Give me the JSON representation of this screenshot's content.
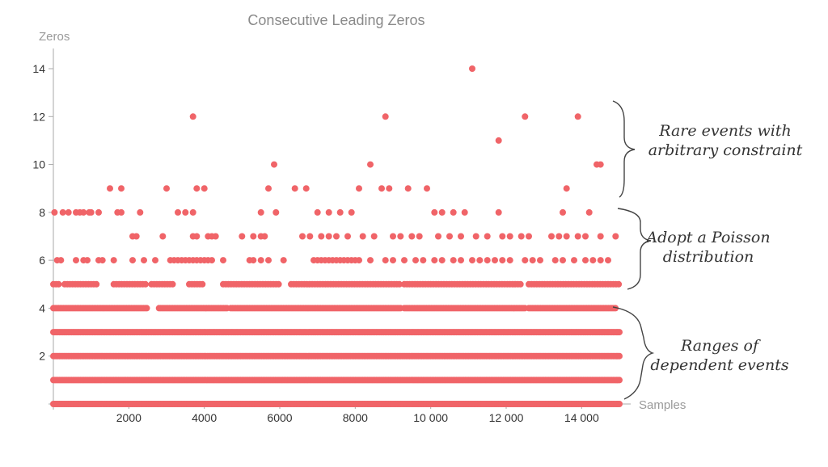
{
  "chart_data": {
    "type": "scatter",
    "title": "Consecutive Leading Zeros",
    "xlabel": "Samples",
    "ylabel": "Zeros",
    "xlim": [
      0,
      15000
    ],
    "ylim": [
      0,
      14.5
    ],
    "x_ticks": [
      "2000",
      "4000",
      "6000",
      "8000",
      "10 000",
      "12 000",
      "14 000"
    ],
    "y_ticks": [
      "2",
      "4",
      "6",
      "8",
      "10",
      "12",
      "14"
    ],
    "color": "#f06468",
    "dense_levels": [
      0,
      1,
      2,
      3
    ],
    "sparse_levels": [
      {
        "y": 4,
        "clusters": [
          [
            0,
            2500
          ],
          [
            2800,
            4600
          ],
          [
            4700,
            9200
          ],
          [
            9300,
            12500
          ],
          [
            12600,
            14900
          ]
        ]
      },
      {
        "y": 5,
        "clusters": [
          [
            0,
            150
          ],
          [
            300,
            1200
          ],
          [
            1600,
            2500
          ],
          [
            2600,
            3200
          ],
          [
            3600,
            4000
          ],
          [
            4500,
            6000
          ],
          [
            6300,
            9200
          ],
          [
            9300,
            12400
          ],
          [
            12600,
            15000
          ]
        ]
      }
    ],
    "points": [
      [
        30,
        8
      ],
      [
        250,
        8
      ],
      [
        400,
        8
      ],
      [
        600,
        8
      ],
      [
        700,
        8
      ],
      [
        800,
        8
      ],
      [
        950,
        8
      ],
      [
        1000,
        8
      ],
      [
        1200,
        8
      ],
      [
        1700,
        8
      ],
      [
        1800,
        8
      ],
      [
        2300,
        8
      ],
      [
        3300,
        8
      ],
      [
        3500,
        8
      ],
      [
        3700,
        8
      ],
      [
        5500,
        8
      ],
      [
        5900,
        8
      ],
      [
        7000,
        8
      ],
      [
        7300,
        8
      ],
      [
        7600,
        8
      ],
      [
        7900,
        8
      ],
      [
        10100,
        8
      ],
      [
        10300,
        8
      ],
      [
        10600,
        8
      ],
      [
        10900,
        8
      ],
      [
        11800,
        8
      ],
      [
        13500,
        8
      ],
      [
        14200,
        8
      ],
      [
        2100,
        7
      ],
      [
        2200,
        7
      ],
      [
        2900,
        7
      ],
      [
        3700,
        7
      ],
      [
        3800,
        7
      ],
      [
        4100,
        7
      ],
      [
        4200,
        7
      ],
      [
        4300,
        7
      ],
      [
        5000,
        7
      ],
      [
        5300,
        7
      ],
      [
        5500,
        7
      ],
      [
        5600,
        7
      ],
      [
        6600,
        7
      ],
      [
        6800,
        7
      ],
      [
        7100,
        7
      ],
      [
        7300,
        7
      ],
      [
        7500,
        7
      ],
      [
        7800,
        7
      ],
      [
        8200,
        7
      ],
      [
        8500,
        7
      ],
      [
        9000,
        7
      ],
      [
        9200,
        7
      ],
      [
        9500,
        7
      ],
      [
        9700,
        7
      ],
      [
        10200,
        7
      ],
      [
        10500,
        7
      ],
      [
        10800,
        7
      ],
      [
        11200,
        7
      ],
      [
        11500,
        7
      ],
      [
        11900,
        7
      ],
      [
        12100,
        7
      ],
      [
        12400,
        7
      ],
      [
        12600,
        7
      ],
      [
        13200,
        7
      ],
      [
        13400,
        7
      ],
      [
        13600,
        7
      ],
      [
        13900,
        7
      ],
      [
        14100,
        7
      ],
      [
        14500,
        7
      ],
      [
        14900,
        7
      ],
      [
        100,
        6
      ],
      [
        200,
        6
      ],
      [
        600,
        6
      ],
      [
        800,
        6
      ],
      [
        900,
        6
      ],
      [
        1200,
        6
      ],
      [
        1300,
        6
      ],
      [
        1600,
        6
      ],
      [
        2100,
        6
      ],
      [
        2400,
        6
      ],
      [
        2700,
        6
      ],
      [
        3100,
        6
      ],
      [
        3200,
        6
      ],
      [
        3300,
        6
      ],
      [
        3400,
        6
      ],
      [
        3500,
        6
      ],
      [
        3600,
        6
      ],
      [
        3700,
        6
      ],
      [
        3800,
        6
      ],
      [
        3900,
        6
      ],
      [
        4000,
        6
      ],
      [
        4100,
        6
      ],
      [
        4200,
        6
      ],
      [
        4500,
        6
      ],
      [
        5200,
        6
      ],
      [
        5300,
        6
      ],
      [
        5500,
        6
      ],
      [
        5700,
        6
      ],
      [
        6100,
        6
      ],
      [
        6900,
        6
      ],
      [
        7000,
        6
      ],
      [
        7100,
        6
      ],
      [
        7200,
        6
      ],
      [
        7300,
        6
      ],
      [
        7400,
        6
      ],
      [
        7500,
        6
      ],
      [
        7600,
        6
      ],
      [
        7700,
        6
      ],
      [
        7800,
        6
      ],
      [
        7900,
        6
      ],
      [
        8000,
        6
      ],
      [
        8100,
        6
      ],
      [
        8400,
        6
      ],
      [
        8800,
        6
      ],
      [
        9000,
        6
      ],
      [
        9300,
        6
      ],
      [
        9600,
        6
      ],
      [
        9800,
        6
      ],
      [
        10100,
        6
      ],
      [
        10300,
        6
      ],
      [
        10600,
        6
      ],
      [
        10800,
        6
      ],
      [
        11100,
        6
      ],
      [
        11300,
        6
      ],
      [
        11500,
        6
      ],
      [
        11700,
        6
      ],
      [
        11900,
        6
      ],
      [
        12100,
        6
      ],
      [
        12500,
        6
      ],
      [
        12700,
        6
      ],
      [
        12900,
        6
      ],
      [
        13300,
        6
      ],
      [
        13500,
        6
      ],
      [
        13800,
        6
      ],
      [
        14100,
        6
      ],
      [
        14300,
        6
      ],
      [
        14500,
        6
      ],
      [
        14700,
        6
      ],
      [
        1500,
        9
      ],
      [
        1800,
        9
      ],
      [
        3000,
        9
      ],
      [
        3800,
        9
      ],
      [
        4000,
        9
      ],
      [
        5700,
        9
      ],
      [
        6400,
        9
      ],
      [
        6700,
        9
      ],
      [
        8100,
        9
      ],
      [
        8700,
        9
      ],
      [
        8900,
        9
      ],
      [
        9400,
        9
      ],
      [
        9900,
        9
      ],
      [
        13600,
        9
      ],
      [
        5850,
        10
      ],
      [
        8400,
        10
      ],
      [
        14400,
        10
      ],
      [
        14500,
        10
      ],
      [
        11800,
        11
      ],
      [
        3700,
        12
      ],
      [
        8800,
        12
      ],
      [
        12500,
        12
      ],
      [
        13900,
        12
      ],
      [
        11100,
        14
      ]
    ],
    "annotations": [
      {
        "line1": "Rare events with",
        "line2": "arbitrary constraint"
      },
      {
        "line1": "Adopt a Poisson",
        "line2": "distribution"
      },
      {
        "line1": "Ranges of",
        "line2": "dependent events"
      }
    ]
  }
}
